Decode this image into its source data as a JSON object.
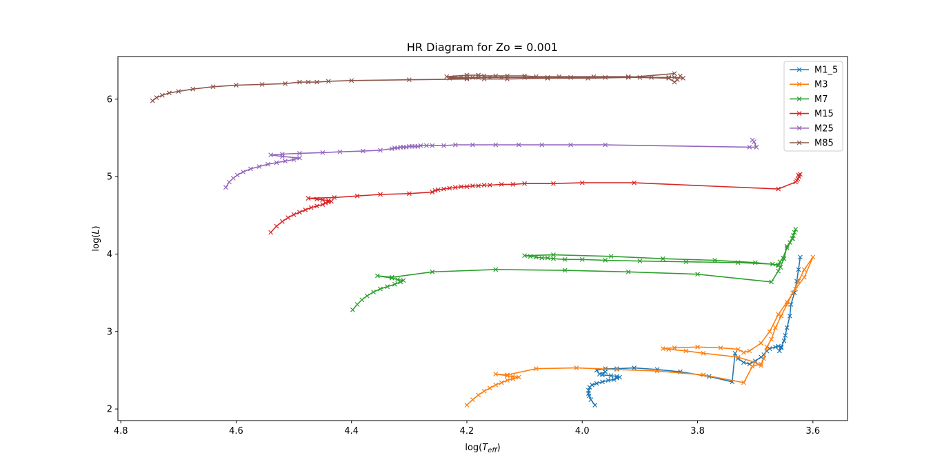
{
  "chart_data": {
    "type": "line",
    "title": "HR Diagram for Zo = 0.001",
    "xlabel": "log(T_eff)",
    "ylabel": "log(L)",
    "xlim": [
      4.805,
      3.54
    ],
    "ylim": [
      1.85,
      6.55
    ],
    "x_inverted": true,
    "xticks": [
      "4.8",
      "4.6",
      "4.4",
      "4.2",
      "4.0",
      "3.8",
      "3.6"
    ],
    "xtick_values": [
      4.8,
      4.6,
      4.4,
      4.2,
      4.0,
      3.8,
      3.6
    ],
    "yticks": [
      "2",
      "3",
      "4",
      "5",
      "6"
    ],
    "ytick_values": [
      2,
      3,
      4,
      5,
      6
    ],
    "grid": false,
    "legend_position": "top-right",
    "marker": "x",
    "series": [
      {
        "name": "M1_5",
        "color": "#1f77b4",
        "x": [
          3.978,
          3.985,
          3.988,
          3.989,
          3.989,
          3.987,
          3.983,
          3.975,
          3.965,
          3.955,
          3.945,
          3.94,
          3.935,
          3.94,
          3.95,
          3.965,
          3.96,
          3.97,
          3.975,
          3.96,
          3.94,
          3.91,
          3.87,
          3.83,
          3.78,
          3.74,
          3.735,
          3.73,
          3.72,
          3.71,
          3.7,
          3.69,
          3.685,
          3.68,
          3.675,
          3.665,
          3.66,
          3.655,
          3.658,
          3.655,
          3.65,
          3.648,
          3.645,
          3.64,
          3.638,
          3.632,
          3.628,
          3.625,
          3.622
        ],
        "y": [
          2.05,
          2.12,
          2.17,
          2.2,
          2.24,
          2.28,
          2.31,
          2.33,
          2.35,
          2.37,
          2.38,
          2.4,
          2.41,
          2.42,
          2.43,
          2.44,
          2.48,
          2.45,
          2.5,
          2.52,
          2.52,
          2.53,
          2.51,
          2.48,
          2.42,
          2.35,
          2.72,
          2.65,
          2.6,
          2.58,
          2.62,
          2.67,
          2.7,
          2.75,
          2.78,
          2.8,
          2.81,
          2.79,
          2.75,
          2.8,
          2.88,
          2.95,
          3.05,
          3.2,
          3.35,
          3.5,
          3.65,
          3.8,
          3.96
        ]
      },
      {
        "name": "M3",
        "color": "#ff7f0e",
        "x": [
          4.2,
          4.19,
          4.18,
          4.17,
          4.16,
          4.15,
          4.14,
          4.13,
          4.12,
          4.11,
          4.12,
          4.13,
          4.15,
          4.13,
          4.08,
          4.01,
          3.94,
          3.87,
          3.79,
          3.72,
          3.705,
          3.69,
          3.685,
          3.68,
          3.672,
          3.665,
          3.655,
          3.645,
          3.635,
          3.625,
          3.615,
          3.6,
          3.615,
          3.63,
          3.645,
          3.66,
          3.675,
          3.69,
          3.71,
          3.72,
          3.73,
          3.76,
          3.8,
          3.84,
          3.86,
          3.85,
          3.82,
          3.79,
          3.73,
          3.7,
          3.69
        ],
        "y": [
          2.05,
          2.12,
          2.18,
          2.23,
          2.27,
          2.31,
          2.34,
          2.37,
          2.39,
          2.41,
          2.42,
          2.43,
          2.45,
          2.44,
          2.52,
          2.53,
          2.51,
          2.49,
          2.44,
          2.34,
          2.55,
          2.58,
          2.65,
          2.8,
          2.9,
          3.05,
          3.2,
          3.35,
          3.5,
          3.65,
          3.8,
          3.96,
          3.7,
          3.55,
          3.38,
          3.22,
          3.0,
          2.85,
          2.75,
          2.73,
          2.77,
          2.79,
          2.8,
          2.79,
          2.78,
          2.77,
          2.75,
          2.72,
          2.67,
          2.6,
          2.56
        ]
      },
      {
        "name": "M7",
        "color": "#2ca02c",
        "x": [
          4.398,
          4.39,
          4.382,
          4.373,
          4.362,
          4.35,
          4.338,
          4.325,
          4.315,
          4.31,
          4.32,
          4.33,
          4.355,
          4.33,
          4.26,
          4.15,
          4.03,
          3.92,
          3.8,
          3.672,
          3.66,
          3.65,
          3.645,
          3.64,
          3.636,
          3.634,
          3.632,
          3.63,
          3.635,
          3.645,
          3.652,
          3.657,
          3.66,
          3.7,
          3.77,
          3.86,
          3.95,
          4.05,
          4.1,
          4.09,
          4.08,
          4.07,
          4.06,
          4.05,
          4.03,
          4.0,
          3.96,
          3.9,
          3.82,
          3.73,
          3.67,
          3.66,
          3.656
        ],
        "y": [
          3.28,
          3.35,
          3.41,
          3.46,
          3.51,
          3.55,
          3.58,
          3.61,
          3.64,
          3.66,
          3.67,
          3.69,
          3.72,
          3.7,
          3.77,
          3.8,
          3.79,
          3.77,
          3.74,
          3.64,
          3.78,
          3.94,
          4.1,
          4.15,
          4.2,
          4.24,
          4.28,
          4.32,
          4.2,
          4.08,
          3.95,
          3.9,
          3.86,
          3.89,
          3.92,
          3.94,
          3.97,
          3.99,
          3.98,
          3.97,
          3.96,
          3.95,
          3.95,
          3.94,
          3.93,
          3.93,
          3.92,
          3.91,
          3.9,
          3.89,
          3.87,
          3.85,
          3.83
        ]
      },
      {
        "name": "M15",
        "color": "#d62728",
        "x": [
          4.54,
          4.53,
          4.52,
          4.51,
          4.5,
          4.49,
          4.48,
          4.47,
          4.46,
          4.45,
          4.445,
          4.44,
          4.435,
          4.44,
          4.45,
          4.46,
          4.475,
          4.43,
          4.39,
          4.35,
          4.3,
          4.26,
          4.255,
          4.25,
          4.24,
          4.23,
          4.22,
          4.21,
          4.2,
          4.19,
          4.18,
          4.17,
          4.16,
          4.14,
          4.12,
          4.1,
          4.05,
          4.0,
          3.91,
          3.66,
          3.63,
          3.628,
          3.626,
          3.624,
          3.622,
          3.625
        ],
        "y": [
          4.28,
          4.36,
          4.42,
          4.47,
          4.51,
          4.54,
          4.57,
          4.6,
          4.62,
          4.64,
          4.66,
          4.67,
          4.68,
          4.69,
          4.7,
          4.71,
          4.72,
          4.73,
          4.75,
          4.77,
          4.78,
          4.8,
          4.82,
          4.83,
          4.84,
          4.85,
          4.86,
          4.87,
          4.87,
          4.88,
          4.88,
          4.89,
          4.89,
          4.9,
          4.9,
          4.91,
          4.91,
          4.92,
          4.92,
          4.84,
          4.93,
          4.95,
          4.97,
          5.0,
          5.03,
          5.02
        ]
      },
      {
        "name": "M25",
        "color": "#9467bd",
        "x": [
          4.618,
          4.612,
          4.605,
          4.598,
          4.588,
          4.575,
          4.56,
          4.545,
          4.53,
          4.515,
          4.5,
          4.49,
          4.52,
          4.54,
          4.52,
          4.49,
          4.45,
          4.42,
          4.38,
          4.35,
          4.33,
          4.325,
          4.32,
          4.315,
          4.31,
          4.305,
          4.3,
          4.295,
          4.29,
          4.285,
          4.28,
          4.27,
          4.26,
          4.24,
          4.22,
          4.19,
          4.15,
          4.11,
          4.07,
          4.02,
          3.96,
          3.71,
          3.698,
          3.702,
          3.705
        ],
        "y": [
          4.86,
          4.93,
          4.98,
          5.02,
          5.06,
          5.1,
          5.13,
          5.16,
          5.18,
          5.2,
          5.22,
          5.24,
          5.26,
          5.28,
          5.29,
          5.3,
          5.31,
          5.32,
          5.33,
          5.34,
          5.36,
          5.37,
          5.37,
          5.38,
          5.38,
          5.38,
          5.39,
          5.39,
          5.39,
          5.39,
          5.4,
          5.4,
          5.4,
          5.4,
          5.41,
          5.41,
          5.41,
          5.41,
          5.41,
          5.41,
          5.41,
          5.38,
          5.38,
          5.45,
          5.47
        ]
      },
      {
        "name": "M85",
        "color": "#8c564b",
        "x": [
          4.745,
          4.738,
          4.728,
          4.716,
          4.7,
          4.675,
          4.64,
          4.6,
          4.555,
          4.515,
          4.49,
          4.475,
          4.46,
          4.44,
          4.4,
          4.3,
          4.2,
          4.23,
          4.22,
          4.21,
          4.2,
          4.19,
          4.18,
          4.16,
          4.14,
          4.1,
          4.06,
          4.02,
          3.96,
          3.9,
          3.85,
          3.84,
          3.835,
          3.83,
          3.825,
          3.84,
          3.85,
          3.88,
          3.92,
          3.98,
          4.04,
          4.08,
          4.1,
          4.13,
          4.15,
          4.17,
          4.18,
          4.2,
          4.235,
          4.2,
          4.17,
          4.13,
          4.06,
          3.99,
          3.92,
          3.84
        ],
        "y": [
          5.98,
          6.02,
          6.05,
          6.08,
          6.1,
          6.13,
          6.16,
          6.18,
          6.19,
          6.2,
          6.22,
          6.22,
          6.22,
          6.23,
          6.24,
          6.25,
          6.26,
          6.27,
          6.28,
          6.28,
          6.28,
          6.28,
          6.28,
          6.28,
          6.28,
          6.28,
          6.28,
          6.28,
          6.28,
          6.28,
          6.27,
          6.22,
          6.25,
          6.3,
          6.27,
          6.28,
          6.28,
          6.28,
          6.29,
          6.29,
          6.29,
          6.29,
          6.3,
          6.3,
          6.3,
          6.3,
          6.31,
          6.31,
          6.29,
          6.27,
          6.26,
          6.26,
          6.27,
          6.27,
          6.28,
          6.33
        ]
      }
    ]
  }
}
